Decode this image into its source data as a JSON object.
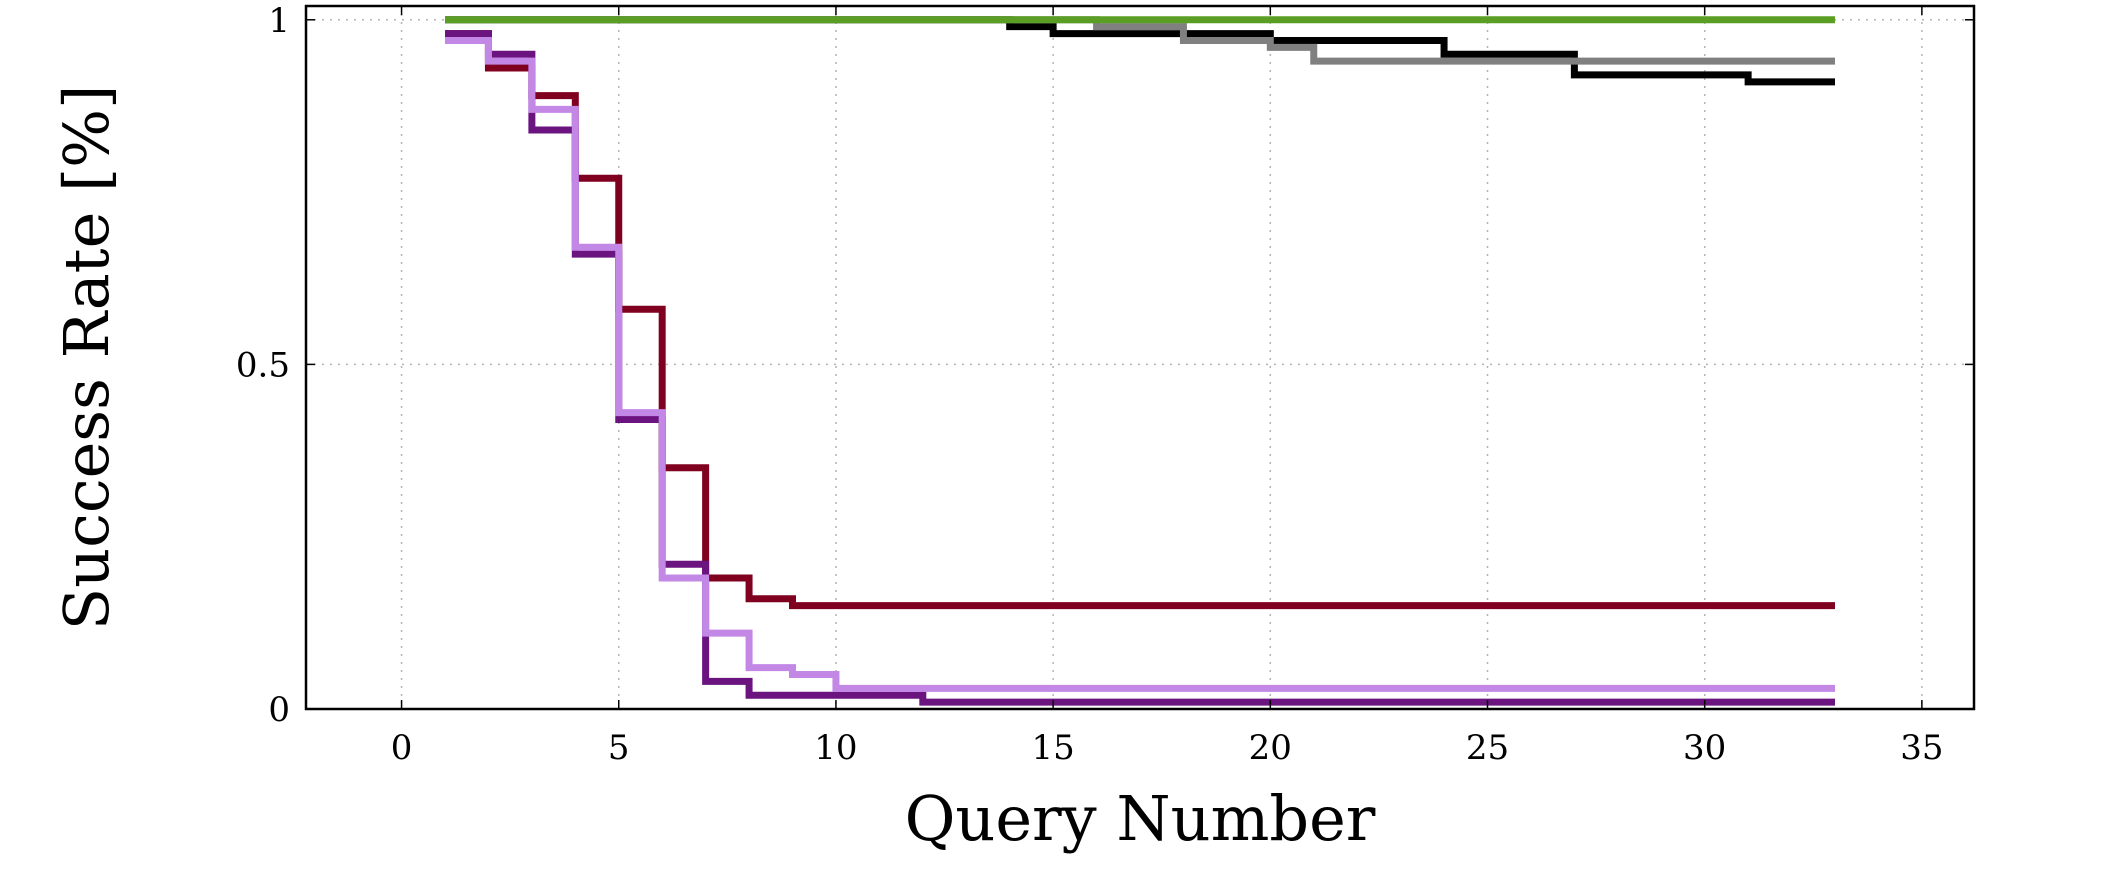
{
  "chart_data": {
    "type": "line",
    "step": true,
    "title": "",
    "xlabel": "Query Number",
    "ylabel": "Success Rate [%]",
    "xlim": [
      -2.2,
      36.2
    ],
    "ylim": [
      0,
      1.02
    ],
    "xticks": [
      0,
      5,
      10,
      15,
      20,
      25,
      30,
      35
    ],
    "xtick_labels": [
      "0",
      "5",
      "10",
      "15",
      "20",
      "25",
      "30",
      "35"
    ],
    "yticks": [
      0,
      0.5,
      1
    ],
    "ytick_labels": [
      "0",
      "0.5",
      "1"
    ],
    "grid": true,
    "legend": "none",
    "series": [
      {
        "color": "#800020",
        "x": [
          1,
          2,
          3,
          4,
          5,
          6,
          7,
          8,
          9,
          33
        ],
        "y": [
          0.98,
          0.93,
          0.89,
          0.77,
          0.58,
          0.35,
          0.19,
          0.16,
          0.15,
          0.15
        ]
      },
      {
        "color": "#6b1480",
        "x": [
          1,
          2,
          3,
          4,
          5,
          6,
          7,
          8,
          12,
          33
        ],
        "y": [
          0.98,
          0.95,
          0.84,
          0.66,
          0.42,
          0.21,
          0.04,
          0.02,
          0.01,
          0.01
        ]
      },
      {
        "color": "#c387e6",
        "x": [
          1,
          2,
          3,
          4,
          5,
          6,
          7,
          8,
          9,
          10,
          33
        ],
        "y": [
          0.97,
          0.94,
          0.87,
          0.67,
          0.43,
          0.19,
          0.11,
          0.06,
          0.05,
          0.03,
          0.03
        ]
      },
      {
        "color": "#000000",
        "x": [
          1,
          14,
          15,
          17,
          20,
          24,
          27,
          31,
          33
        ],
        "y": [
          1.0,
          0.99,
          0.98,
          0.98,
          0.97,
          0.95,
          0.92,
          0.91,
          0.91
        ]
      },
      {
        "color": "#808080",
        "x": [
          1,
          16,
          18,
          20,
          21,
          33
        ],
        "y": [
          1.0,
          0.99,
          0.97,
          0.96,
          0.94,
          0.94
        ]
      },
      {
        "color": "#5a9e23",
        "x": [
          1,
          33
        ],
        "y": [
          1.0,
          1.0
        ]
      }
    ]
  }
}
